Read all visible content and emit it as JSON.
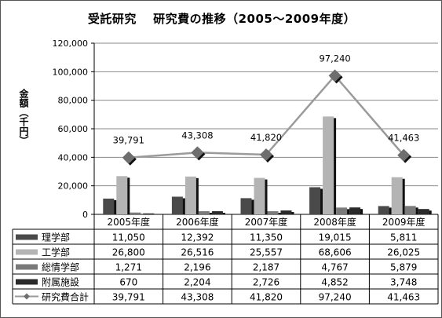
{
  "title": "受託研究　 研究費の推移（2005～2009年度）",
  "ylabel": "金額（千円）",
  "chart_data": {
    "type": "bar",
    "title": "受託研究　 研究費の推移（2005～2009年度）",
    "xlabel": "",
    "ylabel": "金額（千円）",
    "ylim": [
      0,
      120000
    ],
    "y_ticks": [
      "0",
      "20,000",
      "40,000",
      "60,000",
      "80,000",
      "100,000",
      "120,000"
    ],
    "grid": true,
    "legend": "table-below",
    "categories": [
      "2005年度",
      "2006年度",
      "2007年度",
      "2008年度",
      "2009年度"
    ],
    "series": [
      {
        "name": "理学部",
        "type": "bar",
        "color": "#4a4a4a",
        "values": [
          11050,
          12392,
          11350,
          19015,
          5811
        ],
        "labels": [
          "11,050",
          "12,392",
          "11,350",
          "19,015",
          "5,811"
        ]
      },
      {
        "name": "工学部",
        "type": "bar",
        "color": "#b4b4b4",
        "values": [
          26800,
          26516,
          25557,
          68606,
          26025
        ],
        "labels": [
          "26,800",
          "26,516",
          "25,557",
          "68,606",
          "26,025"
        ]
      },
      {
        "name": "総情学部",
        "type": "bar",
        "color": "#7a7a7a",
        "values": [
          1271,
          2196,
          2187,
          4767,
          5879
        ],
        "labels": [
          "1,271",
          "2,196",
          "2,187",
          "4,767",
          "5,879"
        ]
      },
      {
        "name": "附属施設",
        "type": "bar",
        "color": "#2a2a2a",
        "values": [
          670,
          2204,
          2726,
          4852,
          3748
        ],
        "labels": [
          "670",
          "2,204",
          "2,726",
          "4,852",
          "3,748"
        ]
      },
      {
        "name": "研究費合計",
        "type": "line",
        "color": "#9a9a9a",
        "marker_color": "#6e6e6e",
        "values": [
          39791,
          43308,
          41820,
          97240,
          41463
        ],
        "labels": [
          "39,791",
          "43,308",
          "41,820",
          "97,240",
          "41,463"
        ]
      }
    ]
  }
}
